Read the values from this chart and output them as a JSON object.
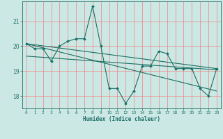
{
  "xlabel": "Humidex (Indice chaleur)",
  "ylabel": "",
  "bg_color": "#cce8e4",
  "line_color": "#1a6e64",
  "grid_color": "#f08080",
  "xlim": [
    -0.5,
    23.5
  ],
  "ylim": [
    17.5,
    21.8
  ],
  "yticks": [
    18,
    19,
    20,
    21
  ],
  "xticks": [
    0,
    1,
    2,
    3,
    4,
    5,
    6,
    7,
    8,
    9,
    10,
    11,
    12,
    13,
    14,
    15,
    16,
    17,
    18,
    19,
    20,
    21,
    22,
    23
  ],
  "series1_x": [
    0,
    1,
    2,
    3,
    4,
    5,
    6,
    7,
    8,
    9,
    10,
    11,
    12,
    13,
    14,
    15,
    16,
    17,
    18,
    19,
    20,
    21,
    22,
    23
  ],
  "series1_y": [
    20.1,
    19.9,
    19.9,
    19.4,
    20.0,
    20.2,
    20.3,
    20.3,
    21.6,
    20.0,
    18.3,
    18.3,
    17.7,
    18.2,
    19.2,
    19.2,
    19.8,
    19.7,
    19.1,
    19.1,
    19.1,
    18.3,
    18.0,
    19.1
  ],
  "series2_x": [
    0,
    23
  ],
  "series2_y": [
    20.1,
    19.1
  ],
  "series3_x": [
    0,
    23
  ],
  "series3_y": [
    20.1,
    18.2
  ],
  "series4_x": [
    0,
    23
  ],
  "series4_y": [
    19.6,
    19.05
  ]
}
